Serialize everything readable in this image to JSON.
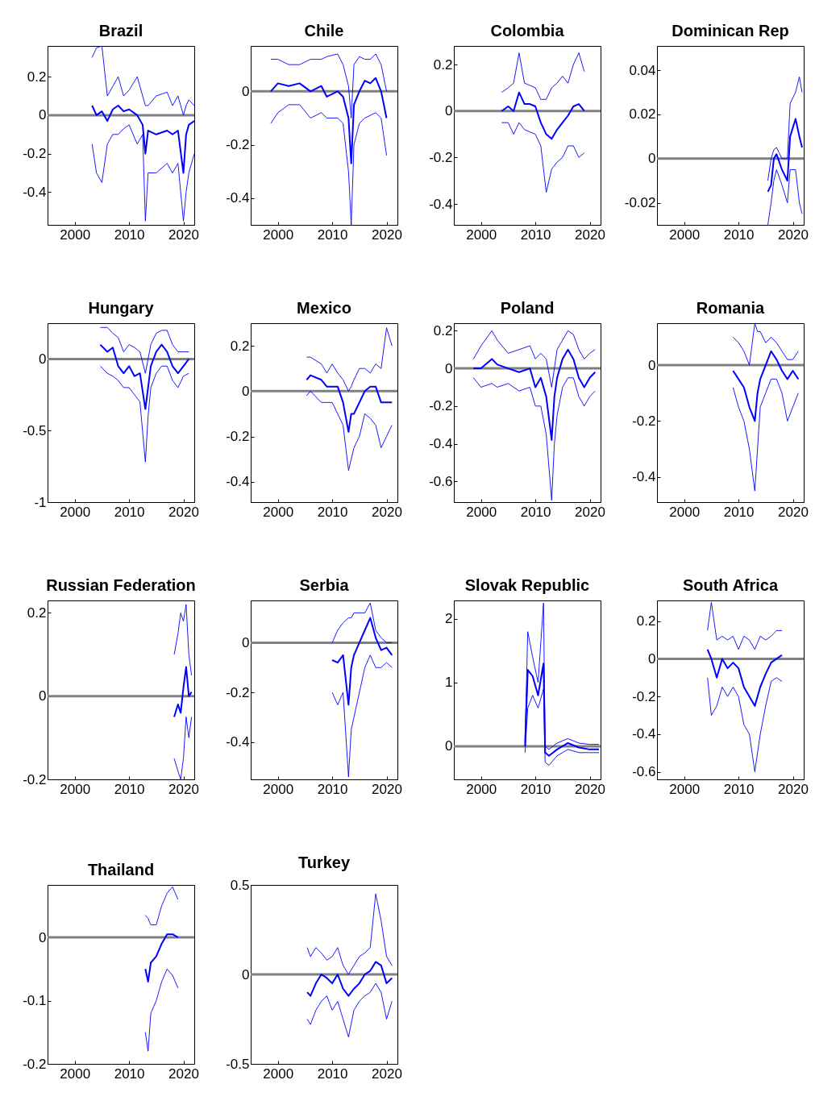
{
  "chart_data": [
    {
      "type": "line",
      "title": "Brazil",
      "xlim": [
        1995,
        2022
      ],
      "xticks": [
        2000,
        2010,
        2020
      ],
      "ylim": [
        -0.57,
        0.36
      ],
      "yticks": [
        -0.4,
        -0.2,
        0,
        0.2
      ],
      "ref_lines": [
        {
          "axis": "y",
          "value": 0,
          "color": "#808080"
        }
      ],
      "x": [
        2003.2,
        2004,
        2005,
        2006,
        2007,
        2008,
        2009,
        2010,
        2011.5,
        2012.5,
        2013,
        2013.5,
        2015,
        2017,
        2018,
        2019,
        2020,
        2020.5,
        2021,
        2022
      ],
      "series": [
        {
          "color": "#0000ff",
          "values": [
            0.05,
            0,
            0.02,
            -0.03,
            0.03,
            0.05,
            0.02,
            0.03,
            0,
            -0.05,
            -0.2,
            -0.08,
            -0.1,
            -0.08,
            -0.1,
            -0.08,
            -0.3,
            -0.1,
            -0.05,
            -0.03
          ]
        },
        {
          "color": "#0000ff",
          "values": [
            0.3,
            0.35,
            0.36,
            0.1,
            0.15,
            0.2,
            0.1,
            0.13,
            0.2,
            0.1,
            0.05,
            0.05,
            0.1,
            0.12,
            0.05,
            0.1,
            0,
            0.05,
            0.08,
            0.05
          ]
        },
        {
          "color": "#0000ff",
          "values": [
            -0.15,
            -0.3,
            -0.35,
            -0.15,
            -0.1,
            -0.1,
            -0.07,
            -0.05,
            -0.15,
            -0.1,
            -0.55,
            -0.3,
            -0.3,
            -0.25,
            -0.3,
            -0.25,
            -0.55,
            -0.4,
            -0.3,
            -0.2
          ]
        }
      ]
    },
    {
      "type": "line",
      "title": "Chile",
      "xlim": [
        1995,
        2022
      ],
      "xticks": [
        2000,
        2010,
        2020
      ],
      "ylim": [
        -0.5,
        0.17
      ],
      "yticks": [
        -0.4,
        -0.2,
        0
      ],
      "ref_lines": [
        {
          "axis": "y",
          "value": 0,
          "color": "#808080"
        }
      ],
      "x": [
        1998.7,
        2000,
        2002,
        2004,
        2006,
        2008,
        2009,
        2011,
        2012,
        2013,
        2013.5,
        2014,
        2015,
        2016,
        2017,
        2018,
        2019,
        2020
      ],
      "series": [
        {
          "color": "#0000ff",
          "values": [
            0,
            0.03,
            0.02,
            0.03,
            0,
            0.02,
            -0.02,
            0,
            -0.02,
            -0.1,
            -0.27,
            -0.05,
            0,
            0.04,
            0.03,
            0.05,
            0,
            -0.1
          ]
        },
        {
          "color": "#0000ff",
          "values": [
            0.12,
            0.12,
            0.1,
            0.1,
            0.12,
            0.12,
            0.13,
            0.14,
            0.1,
            0.02,
            -0.1,
            0.1,
            0.13,
            0.12,
            0.12,
            0.14,
            0.1,
            0
          ]
        },
        {
          "color": "#0000ff",
          "values": [
            -0.12,
            -0.08,
            -0.05,
            -0.05,
            -0.1,
            -0.08,
            -0.1,
            -0.1,
            -0.12,
            -0.3,
            -0.5,
            -0.2,
            -0.12,
            -0.1,
            -0.09,
            -0.08,
            -0.1,
            -0.24
          ]
        }
      ]
    },
    {
      "type": "line",
      "title": "Colombia",
      "xlim": [
        1995,
        2022
      ],
      "xticks": [
        2000,
        2010,
        2020
      ],
      "ylim": [
        -0.49,
        0.28
      ],
      "yticks": [
        -0.4,
        -0.2,
        0,
        0.2
      ],
      "ref_lines": [
        {
          "axis": "y",
          "value": 0,
          "color": "#808080"
        }
      ],
      "x": [
        2003.8,
        2005,
        2006,
        2007,
        2008,
        2009,
        2010,
        2011,
        2012,
        2013,
        2014,
        2015,
        2016,
        2017,
        2018,
        2019
      ],
      "series": [
        {
          "color": "#0000ff",
          "values": [
            0,
            0.02,
            0,
            0.08,
            0.03,
            0.03,
            0.02,
            -0.05,
            -0.1,
            -0.12,
            -0.08,
            -0.05,
            -0.02,
            0.02,
            0.03,
            0
          ]
        },
        {
          "color": "#0000ff",
          "values": [
            0.08,
            0.1,
            0.12,
            0.25,
            0.12,
            0.11,
            0.1,
            0.05,
            0.05,
            0.1,
            0.12,
            0.15,
            0.12,
            0.2,
            0.25,
            0.17
          ]
        },
        {
          "color": "#0000ff",
          "values": [
            -0.05,
            -0.05,
            -0.1,
            -0.05,
            -0.08,
            -0.09,
            -0.1,
            -0.15,
            -0.35,
            -0.25,
            -0.22,
            -0.2,
            -0.15,
            -0.15,
            -0.2,
            -0.18
          ]
        }
      ]
    },
    {
      "type": "line",
      "title": "Dominican Rep",
      "xlim": [
        1995,
        2022
      ],
      "xticks": [
        2000,
        2010,
        2020
      ],
      "ylim": [
        -0.03,
        0.051
      ],
      "yticks": [
        -0.02,
        0,
        0.02,
        0.04
      ],
      "ref_lines": [
        {
          "axis": "y",
          "value": 0,
          "color": "#808080"
        }
      ],
      "x": [
        2015.4,
        2016,
        2016.5,
        2017,
        2018,
        2019,
        2019.5,
        2020.5,
        2021.2,
        2021.7
      ],
      "series": [
        {
          "color": "#0000ff",
          "values": [
            -0.015,
            -0.012,
            0,
            0.002,
            -0.005,
            -0.01,
            0.01,
            0.018,
            0.01,
            0.005
          ]
        },
        {
          "color": "#0000ff",
          "values": [
            -0.01,
            0,
            0.004,
            0.005,
            0,
            0,
            0.025,
            0.03,
            0.037,
            0.03
          ]
        },
        {
          "color": "#0000ff",
          "values": [
            -0.03,
            -0.02,
            -0.01,
            -0.005,
            -0.012,
            -0.02,
            -0.005,
            -0.005,
            -0.02,
            -0.025
          ]
        }
      ]
    },
    {
      "type": "line",
      "title": "Hungary",
      "xlim": [
        1995,
        2022
      ],
      "xticks": [
        2000,
        2010,
        2020
      ],
      "ylim": [
        -1,
        0.25
      ],
      "yticks": [
        -1,
        -0.5,
        0
      ],
      "ref_lines": [
        {
          "axis": "y",
          "value": 0,
          "color": "#808080"
        }
      ],
      "x": [
        2004.7,
        2006,
        2007,
        2008,
        2009,
        2010,
        2011,
        2012,
        2013,
        2013.5,
        2014,
        2015,
        2016,
        2017,
        2018,
        2019,
        2020,
        2021
      ],
      "series": [
        {
          "color": "#0000ff",
          "values": [
            0.1,
            0.05,
            0.08,
            -0.05,
            -0.1,
            -0.05,
            -0.12,
            -0.1,
            -0.35,
            -0.2,
            -0.05,
            0.05,
            0.1,
            0.05,
            -0.05,
            -0.1,
            -0.05,
            0
          ]
        },
        {
          "color": "#0000ff",
          "values": [
            0.22,
            0.22,
            0.18,
            0.15,
            0.05,
            0.1,
            0.08,
            0.05,
            -0.1,
            0,
            0.1,
            0.18,
            0.2,
            0.2,
            0.1,
            0.05,
            0.05,
            0.05
          ]
        },
        {
          "color": "#0000ff",
          "values": [
            -0.05,
            -0.1,
            -0.12,
            -0.15,
            -0.2,
            -0.2,
            -0.25,
            -0.3,
            -0.72,
            -0.4,
            -0.2,
            -0.1,
            -0.05,
            -0.05,
            -0.15,
            -0.2,
            -0.12,
            -0.1
          ]
        }
      ]
    },
    {
      "type": "line",
      "title": "Mexico",
      "xlim": [
        1995,
        2022
      ],
      "xticks": [
        2000,
        2010,
        2020
      ],
      "ylim": [
        -0.49,
        0.3
      ],
      "yticks": [
        -0.4,
        -0.2,
        0,
        0.2
      ],
      "ref_lines": [
        {
          "axis": "y",
          "value": 0,
          "color": "#808080"
        }
      ],
      "x": [
        2005.3,
        2006,
        2008,
        2009,
        2010,
        2011,
        2012,
        2013,
        2013.5,
        2014,
        2015,
        2016,
        2017,
        2018,
        2019,
        2020,
        2021
      ],
      "series": [
        {
          "color": "#0000ff",
          "values": [
            0.05,
            0.07,
            0.05,
            0.02,
            0.02,
            0.02,
            -0.05,
            -0.18,
            -0.1,
            -0.1,
            -0.05,
            0,
            0.02,
            0.02,
            -0.05,
            -0.05,
            -0.05
          ]
        },
        {
          "color": "#0000ff",
          "values": [
            0.15,
            0.15,
            0.12,
            0.08,
            0.12,
            0.08,
            0.05,
            0,
            0.02,
            0.05,
            0.1,
            0.1,
            0.08,
            0.12,
            0.1,
            0.28,
            0.2
          ]
        },
        {
          "color": "#0000ff",
          "values": [
            -0.02,
            0,
            -0.05,
            -0.05,
            -0.05,
            -0.1,
            -0.15,
            -0.35,
            -0.3,
            -0.25,
            -0.2,
            -0.1,
            -0.12,
            -0.15,
            -0.25,
            -0.2,
            -0.15
          ]
        }
      ]
    },
    {
      "type": "line",
      "title": "Poland",
      "xlim": [
        1995,
        2022
      ],
      "xticks": [
        2000,
        2010,
        2020
      ],
      "ylim": [
        -0.71,
        0.24
      ],
      "yticks": [
        -0.6,
        -0.4,
        -0.2,
        0,
        0.2
      ],
      "ref_lines": [
        {
          "axis": "y",
          "value": 0,
          "color": "#808080"
        }
      ],
      "x": [
        1998.6,
        2000,
        2002,
        2003,
        2005,
        2007,
        2009,
        2010,
        2011,
        2012,
        2013,
        2013.5,
        2014,
        2015,
        2016,
        2017,
        2018,
        2019,
        2020,
        2021
      ],
      "series": [
        {
          "color": "#0000ff",
          "values": [
            0,
            0,
            0.05,
            0.02,
            0,
            -0.02,
            0,
            -0.1,
            -0.05,
            -0.15,
            -0.38,
            -0.15,
            -0.05,
            0.05,
            0.1,
            0.05,
            -0.05,
            -0.1,
            -0.05,
            -0.02
          ]
        },
        {
          "color": "#0000ff",
          "values": [
            0.05,
            0.12,
            0.2,
            0.15,
            0.08,
            0.1,
            0.12,
            0.05,
            0.08,
            0.05,
            -0.1,
            0,
            0.1,
            0.15,
            0.2,
            0.18,
            0.1,
            0.05,
            0.08,
            0.1
          ]
        },
        {
          "color": "#0000ff",
          "values": [
            -0.05,
            -0.1,
            -0.08,
            -0.1,
            -0.08,
            -0.12,
            -0.1,
            -0.2,
            -0.2,
            -0.35,
            -0.7,
            -0.4,
            -0.25,
            -0.1,
            -0.05,
            -0.05,
            -0.15,
            -0.2,
            -0.15,
            -0.12
          ]
        }
      ]
    },
    {
      "type": "line",
      "title": "Romania",
      "xlim": [
        1995,
        2022
      ],
      "xticks": [
        2000,
        2010,
        2020
      ],
      "ylim": [
        -0.49,
        0.15
      ],
      "yticks": [
        -0.4,
        -0.2,
        0
      ],
      "ref_lines": [
        {
          "axis": "y",
          "value": 0,
          "color": "#808080"
        }
      ],
      "x": [
        2009,
        2010,
        2011,
        2012,
        2013,
        2013.5,
        2014,
        2015,
        2016,
        2017,
        2018,
        2019,
        2020,
        2021
      ],
      "series": [
        {
          "color": "#0000ff",
          "values": [
            -0.02,
            -0.05,
            -0.08,
            -0.15,
            -0.2,
            -0.1,
            -0.05,
            0,
            0.05,
            0.02,
            -0.02,
            -0.05,
            -0.02,
            -0.05
          ]
        },
        {
          "color": "#0000ff",
          "values": [
            0.1,
            0.08,
            0.05,
            0,
            0.15,
            0.12,
            0.12,
            0.08,
            0.1,
            0.08,
            0.05,
            0.02,
            0.02,
            0.05
          ]
        },
        {
          "color": "#0000ff",
          "values": [
            -0.08,
            -0.15,
            -0.2,
            -0.3,
            -0.45,
            -0.3,
            -0.15,
            -0.1,
            -0.05,
            -0.05,
            -0.1,
            -0.2,
            -0.15,
            -0.1
          ]
        }
      ]
    },
    {
      "type": "line",
      "title": "Russian Federation",
      "xlim": [
        1995,
        2022
      ],
      "xticks": [
        2000,
        2010,
        2020
      ],
      "ylim": [
        -0.2,
        0.23
      ],
      "yticks": [
        -0.2,
        0,
        0.2
      ],
      "ref_lines": [
        {
          "axis": "y",
          "value": 0,
          "color": "#808080"
        }
      ],
      "x": [
        2018.3,
        2019,
        2019.5,
        2020,
        2020.5,
        2021,
        2021.5
      ],
      "series": [
        {
          "color": "#0000ff",
          "values": [
            -0.05,
            -0.02,
            -0.04,
            0.02,
            0.07,
            0,
            0.01
          ]
        },
        {
          "color": "#0000ff",
          "values": [
            0.1,
            0.15,
            0.2,
            0.18,
            0.22,
            0.1,
            0.05
          ]
        },
        {
          "color": "#0000ff",
          "values": [
            -0.15,
            -0.18,
            -0.2,
            -0.15,
            -0.05,
            -0.1,
            -0.05
          ]
        }
      ]
    },
    {
      "type": "line",
      "title": "Serbia",
      "xlim": [
        1995,
        2022
      ],
      "xticks": [
        2000,
        2010,
        2020
      ],
      "ylim": [
        -0.55,
        0.17
      ],
      "yticks": [
        -0.4,
        -0.2,
        0
      ],
      "ref_lines": [
        {
          "axis": "y",
          "value": 0,
          "color": "#808080"
        }
      ],
      "x": [
        2010,
        2011,
        2012,
        2013,
        2013.5,
        2014,
        2015,
        2016,
        2017,
        2018,
        2019,
        2020,
        2021
      ],
      "series": [
        {
          "color": "#0000ff",
          "values": [
            -0.07,
            -0.08,
            -0.05,
            -0.25,
            -0.1,
            -0.05,
            0,
            0.05,
            0.1,
            0.02,
            -0.03,
            -0.02,
            -0.05
          ]
        },
        {
          "color": "#0000ff",
          "values": [
            0,
            0.05,
            0.08,
            0.1,
            0.1,
            0.12,
            0.12,
            0.12,
            0.16,
            0.05,
            0.02,
            0,
            0
          ]
        },
        {
          "color": "#0000ff",
          "values": [
            -0.2,
            -0.25,
            -0.2,
            -0.54,
            -0.35,
            -0.3,
            -0.2,
            -0.1,
            -0.05,
            -0.1,
            -0.1,
            -0.08,
            -0.1
          ]
        }
      ]
    },
    {
      "type": "line",
      "title": "Slovak Republic",
      "xlim": [
        1995,
        2022
      ],
      "xticks": [
        2000,
        2010,
        2020
      ],
      "ylim": [
        -0.52,
        2.29
      ],
      "yticks": [
        0,
        1,
        2
      ],
      "ref_lines": [
        {
          "axis": "y",
          "value": 0,
          "color": "#808080"
        }
      ],
      "x": [
        2008.1,
        2008.6,
        2009.5,
        2010.5,
        2011.5,
        2011.8,
        2012.5,
        2014,
        2016,
        2018,
        2020,
        2021.7
      ],
      "series": [
        {
          "color": "#0000ff",
          "values": [
            0,
            1.2,
            1.1,
            0.8,
            1.3,
            -0.1,
            -0.15,
            -0.05,
            0.05,
            -0.02,
            -0.05,
            -0.05
          ]
        },
        {
          "color": "#0000ff",
          "values": [
            0.1,
            1.8,
            1.4,
            1,
            2.25,
            0,
            -0.05,
            0.05,
            0.12,
            0.05,
            0.03,
            0.03
          ]
        },
        {
          "color": "#0000ff",
          "values": [
            -0.1,
            0.6,
            0.8,
            0.6,
            0.9,
            -0.25,
            -0.3,
            -0.15,
            -0.05,
            -0.1,
            -0.1,
            -0.1
          ]
        }
      ]
    },
    {
      "type": "line",
      "title": "South Africa",
      "xlim": [
        1995,
        2022
      ],
      "xticks": [
        2000,
        2010,
        2020
      ],
      "ylim": [
        -0.64,
        0.31
      ],
      "yticks": [
        -0.6,
        -0.4,
        -0.2,
        0,
        0.2
      ],
      "ref_lines": [
        {
          "axis": "y",
          "value": 0,
          "color": "#808080"
        }
      ],
      "x": [
        2004.3,
        2005,
        2006,
        2007,
        2008,
        2009,
        2010,
        2011,
        2012,
        2013,
        2014,
        2015,
        2016,
        2017,
        2018
      ],
      "series": [
        {
          "color": "#0000ff",
          "values": [
            0.05,
            0,
            -0.1,
            0,
            -0.05,
            -0.02,
            -0.05,
            -0.15,
            -0.2,
            -0.25,
            -0.15,
            -0.08,
            -0.02,
            0,
            0.02
          ]
        },
        {
          "color": "#0000ff",
          "values": [
            0.15,
            0.3,
            0.1,
            0.12,
            0.1,
            0.12,
            0.05,
            0.12,
            0.1,
            0.05,
            0.12,
            0.1,
            0.12,
            0.15,
            0.15
          ]
        },
        {
          "color": "#0000ff",
          "values": [
            -0.1,
            -0.3,
            -0.25,
            -0.15,
            -0.2,
            -0.15,
            -0.2,
            -0.35,
            -0.4,
            -0.6,
            -0.4,
            -0.25,
            -0.12,
            -0.1,
            -0.12
          ]
        }
      ]
    },
    {
      "type": "line",
      "title": "Thailand",
      "xlim": [
        1995,
        2022
      ],
      "xticks": [
        2000,
        2010,
        2020
      ],
      "ylim": [
        -0.2,
        0.083
      ],
      "yticks": [
        -0.2,
        -0.1,
        0
      ],
      "ref_lines": [
        {
          "axis": "y",
          "value": 0,
          "color": "#808080"
        }
      ],
      "x": [
        2013,
        2013.5,
        2014,
        2015,
        2016,
        2017,
        2018,
        2019
      ],
      "series": [
        {
          "color": "#0000ff",
          "values": [
            -0.05,
            -0.07,
            -0.04,
            -0.03,
            -0.01,
            0.005,
            0.005,
            0
          ]
        },
        {
          "color": "#0000ff",
          "values": [
            0.035,
            0.03,
            0.02,
            0.02,
            0.05,
            0.07,
            0.08,
            0.06
          ]
        },
        {
          "color": "#0000ff",
          "values": [
            -0.15,
            -0.18,
            -0.12,
            -0.1,
            -0.07,
            -0.05,
            -0.06,
            -0.08
          ]
        }
      ]
    },
    {
      "type": "line",
      "title": "Turkey",
      "xlim": [
        1995,
        2022
      ],
      "xticks": [
        2000,
        2010,
        2020
      ],
      "ylim": [
        -0.5,
        0.5
      ],
      "yticks": [
        -0.5,
        0,
        0.5
      ],
      "ref_lines": [
        {
          "axis": "y",
          "value": 0,
          "color": "#808080"
        }
      ],
      "x": [
        2005.4,
        2006,
        2007,
        2008,
        2009,
        2010,
        2011,
        2012,
        2013,
        2014,
        2015,
        2016,
        2017,
        2018,
        2019,
        2020,
        2021
      ],
      "series": [
        {
          "color": "#0000ff",
          "values": [
            -0.1,
            -0.12,
            -0.05,
            0,
            -0.02,
            -0.05,
            0,
            -0.08,
            -0.12,
            -0.08,
            -0.05,
            0,
            0.02,
            0.07,
            0.05,
            -0.05,
            -0.02
          ]
        },
        {
          "color": "#0000ff",
          "values": [
            0.15,
            0.1,
            0.15,
            0.12,
            0.08,
            0.1,
            0.15,
            0.05,
            0,
            0.05,
            0.1,
            0.12,
            0.15,
            0.45,
            0.3,
            0.1,
            0.05
          ]
        },
        {
          "color": "#0000ff",
          "values": [
            -0.25,
            -0.28,
            -0.2,
            -0.15,
            -0.12,
            -0.2,
            -0.15,
            -0.25,
            -0.35,
            -0.2,
            -0.15,
            -0.12,
            -0.1,
            -0.05,
            -0.1,
            -0.25,
            -0.15
          ]
        }
      ]
    }
  ]
}
